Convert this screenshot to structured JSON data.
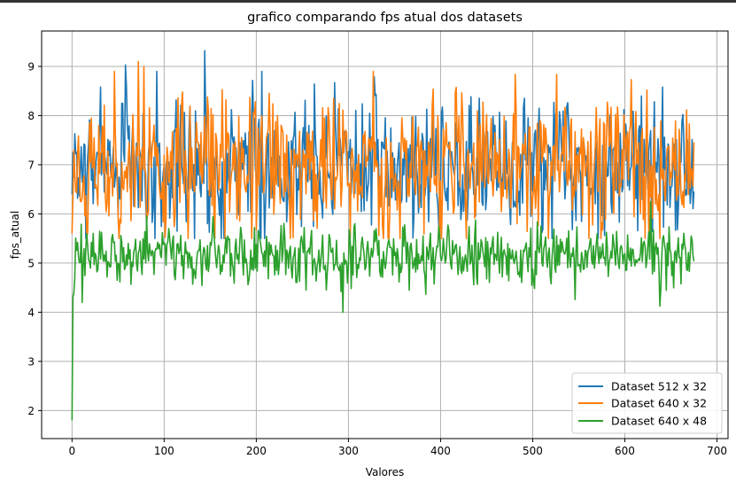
{
  "chart_data": {
    "type": "line",
    "title": "grafico comparando fps atual dos datasets",
    "xlabel": "Valores",
    "ylabel": "fps_atual",
    "xlim": [
      -33,
      712
    ],
    "ylim": [
      1.43,
      9.72
    ],
    "xticks": [
      "0",
      "100",
      "200",
      "300",
      "400",
      "500",
      "600",
      "700"
    ],
    "yticks": [
      "2",
      "3",
      "4",
      "5",
      "6",
      "7",
      "8",
      "9"
    ],
    "grid": true,
    "legend_position": "lower-right",
    "series": [
      {
        "name": "Dataset 512 x 32",
        "color": "#1f77b4",
        "n_points": 676,
        "start_value": 6.4,
        "mean": 7.0,
        "amplitude": 0.75,
        "range": [
          5.5,
          9.32
        ],
        "peaks": [
          {
            "x": 144,
            "y": 9.32
          },
          {
            "x": 92,
            "y": 8.9
          },
          {
            "x": 206,
            "y": 8.9
          },
          {
            "x": 618,
            "y": 8.4
          }
        ]
      },
      {
        "name": "Dataset 640 x 32",
        "color": "#ff7f0e",
        "n_points": 676,
        "start_value": 5.6,
        "mean": 7.0,
        "amplitude": 0.8,
        "range": [
          5.5,
          9.1
        ],
        "peaks": [
          {
            "x": 72,
            "y": 9.1
          },
          {
            "x": 78,
            "y": 9.0
          },
          {
            "x": 46,
            "y": 8.9
          },
          {
            "x": 327,
            "y": 8.9
          }
        ]
      },
      {
        "name": "Dataset 640 x 48",
        "color": "#2ca02c",
        "n_points": 676,
        "start_value": 1.8,
        "mean": 5.15,
        "amplitude": 0.35,
        "range": [
          1.8,
          6.3
        ],
        "dips": [
          {
            "x": 294,
            "y": 4.0
          },
          {
            "x": 11,
            "y": 4.2
          }
        ]
      }
    ]
  }
}
